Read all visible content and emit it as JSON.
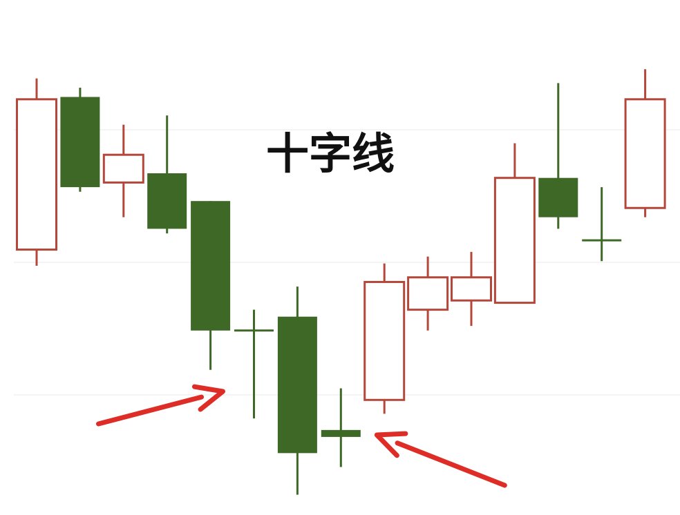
{
  "chart_data": {
    "type": "candlestick",
    "title": "十字线",
    "xlabel": "",
    "ylabel": "",
    "ylim": [
      0,
      100
    ],
    "grid": true,
    "colors": {
      "bullish": "#b5473a",
      "bearish": "#3e6826",
      "arrow": "#de2d26"
    },
    "candles": [
      {
        "open": 53.5,
        "high": 90.5,
        "low": 50.0,
        "close": 86.0,
        "direction": "up"
      },
      {
        "open": 86.5,
        "high": 88.5,
        "low": 66.0,
        "close": 67.0,
        "direction": "down"
      },
      {
        "open": 68.0,
        "high": 80.5,
        "low": 60.5,
        "close": 74.0,
        "direction": "up"
      },
      {
        "open": 70.0,
        "high": 82.5,
        "low": 57.0,
        "close": 58.0,
        "direction": "down"
      },
      {
        "open": 64.0,
        "high": 64.0,
        "low": 27.5,
        "close": 36.0,
        "direction": "down"
      },
      {
        "open": 36.0,
        "high": 40.5,
        "low": 17.0,
        "close": 36.0,
        "direction": "doji"
      },
      {
        "open": 39.0,
        "high": 45.5,
        "low": 0.5,
        "close": 9.5,
        "direction": "down"
      },
      {
        "open": 14.5,
        "high": 23.5,
        "low": 6.5,
        "close": 13.0,
        "direction": "doji"
      },
      {
        "open": 21.0,
        "high": 50.5,
        "low": 18.0,
        "close": 46.5,
        "direction": "up"
      },
      {
        "open": 40.5,
        "high": 52.0,
        "low": 36.0,
        "close": 47.5,
        "direction": "up"
      },
      {
        "open": 42.5,
        "high": 53.0,
        "low": 37.0,
        "close": 47.5,
        "direction": "up"
      },
      {
        "open": 42.0,
        "high": 76.5,
        "low": 42.0,
        "close": 69.0,
        "direction": "up"
      },
      {
        "open": 69.0,
        "high": 89.5,
        "low": 58.0,
        "close": 60.5,
        "direction": "down"
      },
      {
        "open": 55.5,
        "high": 67.0,
        "low": 51.0,
        "close": 55.5,
        "direction": "doji"
      },
      {
        "open": 62.5,
        "high": 92.5,
        "low": 60.5,
        "close": 86.0,
        "direction": "up"
      }
    ],
    "annotations": [
      {
        "type": "arrow",
        "points_to_candle": 5
      },
      {
        "type": "arrow",
        "points_to_candle": 7
      }
    ]
  }
}
